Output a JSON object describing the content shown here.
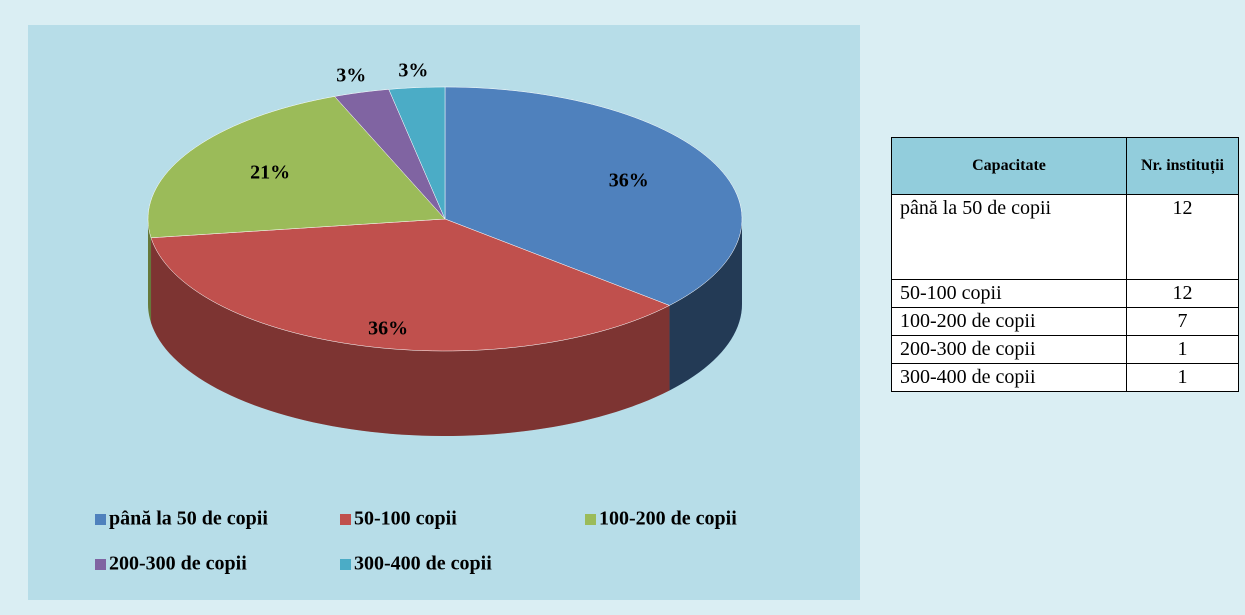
{
  "chart_data": {
    "type": "pie",
    "categories": [
      "până la 50 de copii",
      "50-100 copii",
      "100-200 de copii",
      "200-300 de copii",
      "300-400 de copii"
    ],
    "values": [
      36,
      36,
      21,
      3,
      3
    ],
    "value_labels": [
      "36%",
      "36%",
      "21%",
      "3%",
      "3%"
    ],
    "colors": [
      "#4f81bd",
      "#c0504d",
      "#9bbb59",
      "#8064a2",
      "#4bacc6"
    ],
    "legend": "bottom"
  },
  "table": {
    "header": [
      "Capacitate",
      "Nr. instituții"
    ],
    "rows": [
      [
        "până la 50 de copii",
        "12"
      ],
      [
        "50-100 copii",
        "12"
      ],
      [
        "100-200 de copii",
        "7"
      ],
      [
        "200-300 de copii",
        "1"
      ],
      [
        "300-400 de copii",
        "1"
      ]
    ]
  }
}
